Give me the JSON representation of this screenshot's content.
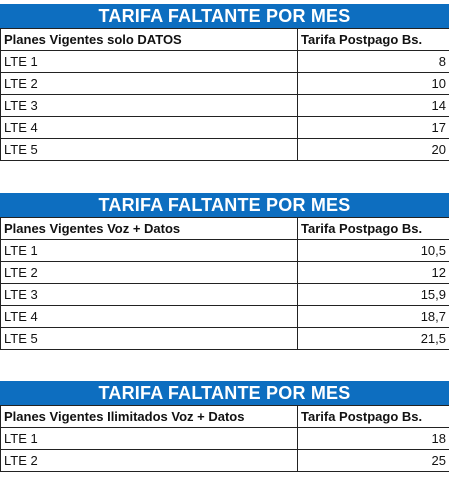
{
  "tables": [
    {
      "banner": "TARIFA FALTANTE POR MES",
      "col1_header": "Planes Vigentes solo DATOS",
      "col2_header": "Tarifa Postpago Bs.",
      "rows": [
        {
          "plan": "LTE 1",
          "tarifa": "8"
        },
        {
          "plan": "LTE 2",
          "tarifa": "10"
        },
        {
          "plan": "LTE 3",
          "tarifa": "14"
        },
        {
          "plan": "LTE 4",
          "tarifa": "17"
        },
        {
          "plan": "LTE 5",
          "tarifa": "20"
        }
      ]
    },
    {
      "banner": "TARIFA FALTANTE POR MES",
      "col1_header": "Planes Vigentes Voz + Datos",
      "col2_header": "Tarifa Postpago Bs.",
      "rows": [
        {
          "plan": "LTE 1",
          "tarifa": "10,5"
        },
        {
          "plan": "LTE 2",
          "tarifa": "12"
        },
        {
          "plan": "LTE 3",
          "tarifa": "15,9"
        },
        {
          "plan": "LTE 4",
          "tarifa": "18,7"
        },
        {
          "plan": "LTE 5",
          "tarifa": "21,5"
        }
      ]
    },
    {
      "banner": "TARIFA FALTANTE POR MES",
      "col1_header": "Planes Vigentes Ilimitados Voz + Datos",
      "col2_header": "Tarifa Postpago Bs.",
      "rows": [
        {
          "plan": "LTE 1",
          "tarifa": "18"
        },
        {
          "plan": "LTE 2",
          "tarifa": "25"
        }
      ]
    }
  ],
  "colors": {
    "banner_bg": "#0d6ec0",
    "banner_text": "#ffffff",
    "grid_line": "#222222"
  }
}
